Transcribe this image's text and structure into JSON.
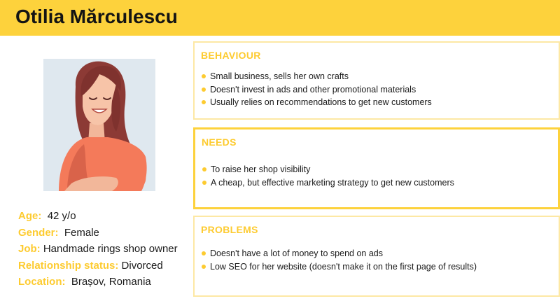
{
  "colors": {
    "accent": "#fdd23c",
    "label": "#fdcb30",
    "card_border": "#fde8a4"
  },
  "header": {
    "title": "Otilia Mărculescu"
  },
  "profile": {
    "portrait_icon": "woman-illustration-icon",
    "fields": [
      {
        "label": "Age:",
        "value": "42 y/o"
      },
      {
        "label": "Gender:",
        "value": "Female"
      },
      {
        "label": "Job:",
        "value": "Handmade rings shop owner"
      },
      {
        "label": "Relationship status:",
        "value": "Divorced"
      },
      {
        "label": "Location:",
        "value": "Brașov, Romania"
      }
    ]
  },
  "sections": {
    "behaviour": {
      "title": "BEHAVIOUR",
      "items": [
        "Small business, sells her own crafts",
        "Doesn't invest in ads and other promotional materials",
        "Usually relies on recommendations to get new customers"
      ]
    },
    "needs": {
      "title": "NEEDS",
      "items": [
        "To raise her shop visibility",
        "A cheap, but effective marketing strategy to get new customers"
      ]
    },
    "problems": {
      "title": "PROBLEMS",
      "items": [
        "Doesn't have a lot of money to spend on ads",
        "Low SEO for her website (doesn't make it on the first page of results)"
      ]
    }
  }
}
